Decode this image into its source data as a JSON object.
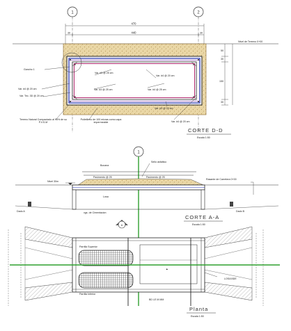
{
  "section_dd": {
    "axis_markers": [
      "1",
      "2"
    ],
    "dim_top": "470",
    "dim_inner": "440",
    "dim_left_offset": "30",
    "dim_right_offset": "30",
    "ground_level": "Nivel de Terreno 0+00",
    "vertical_dims": [
      "50",
      "150",
      "30",
      "30"
    ],
    "labels": {
      "gancho": "Gancho 1",
      "var_left1": "Var. #4 @ 20 cm",
      "var_left2": "Var. Tec. 3D @ 20 cm",
      "var_top_left": "Var. #3 @ 25 cm",
      "var_top_right": "Var. #4 @ 20 cm",
      "var_mid_left": "Var. #3 @ 25 cm",
      "var_mid_right": "Var. #4 @ 25 cm",
      "var_bottom": "Var. #3 @ 20 cm",
      "var_bottom_right": "Var. #4 @ 20 cm",
      "terreno": "Terreno Natural Compactado al 95% de su P.V.S.M",
      "polietileno": "Polietileno de 100 micras como capa impermeable"
    },
    "title": "CORTE  D-D",
    "scale": "Escala 1:50"
  },
  "section_aa": {
    "axis_marker": "1",
    "labels": {
      "bocana": "Bocana",
      "sello": "Sello asfaltico",
      "pavimento_left": "Pavimento @ 25",
      "pavimento_right": "Pavimento @ 25",
      "nivel": "Nivel 30m",
      "rasante": "Rasante de Carretera 0+00",
      "losa": "Losa",
      "viga": "vgs. de Cimentacion",
      "dado_left": "Dado A",
      "dado_right": "Dado B"
    },
    "title": "CORTE  A-A",
    "scale": "Escala 1:50"
  },
  "plan": {
    "marker": "A",
    "labels": {
      "parrilla_sup": "Parrilla Superior",
      "parrilla_inf": "Parrilla Inferior",
      "losa_right": "LOSA BDE",
      "bottom": "BD  LE  M  MM"
    },
    "title": "Planta",
    "scale": "Escala 1:50"
  }
}
